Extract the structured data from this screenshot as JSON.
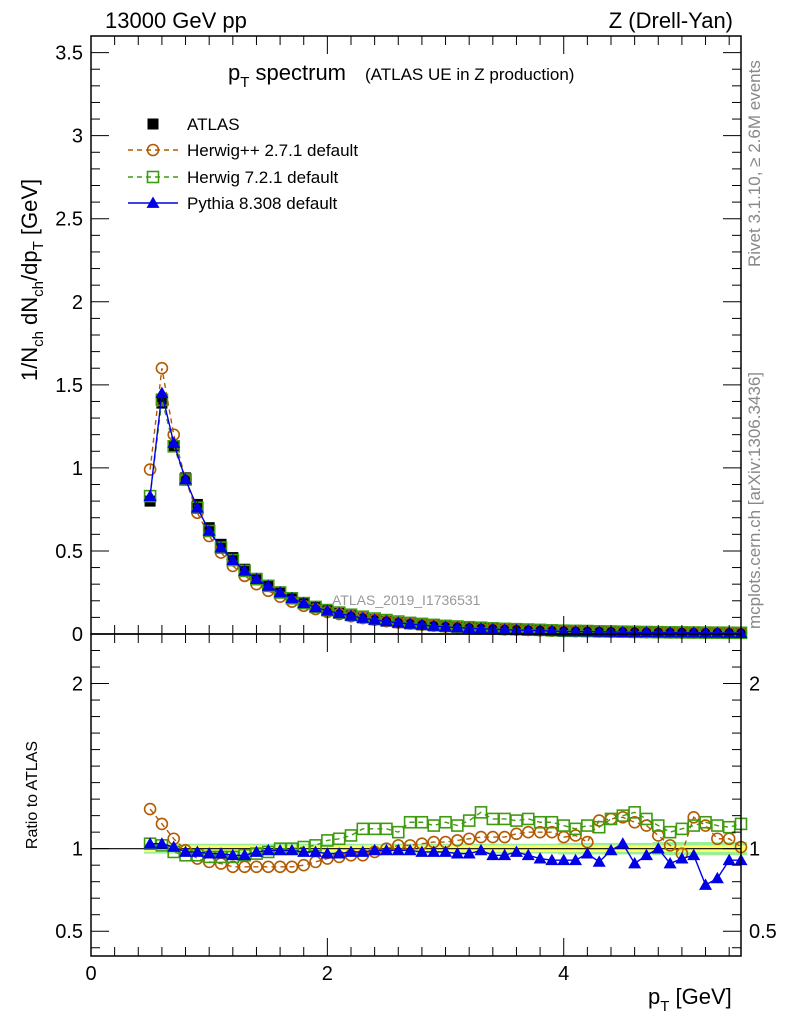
{
  "header": {
    "energy": "13000 GeV pp",
    "process": "Z (Drell-Yan)"
  },
  "side_labels": {
    "rivet": "Rivet 3.1.10, ≥ 2.6M events",
    "mcplots": "mcplots.cern.ch [arXiv:1306.3436]"
  },
  "colors": {
    "atlas": "#000000",
    "herwigpp": "#b35a00",
    "herwig7": "#3e9b0f",
    "pythia": "#0000e6",
    "band_inner": "#ffff66",
    "band_outer": "#99ee99"
  },
  "chart_data": [
    {
      "type": "line",
      "title_main": "p",
      "title_sub": "T",
      "title_rest": " spectrum",
      "subtitle": "(ATLAS UE in Z production)",
      "watermark": "ATLAS_2019_I1736531",
      "ylabel": "1/N_ch dN_ch/dp_T [GeV]",
      "xlim": [
        0,
        5.5
      ],
      "ylim": [
        0,
        3.6
      ],
      "yticks": [
        0,
        0.5,
        1,
        1.5,
        2,
        2.5,
        3,
        3.5
      ],
      "ytick_labels": [
        "0",
        "0.5",
        "1",
        "1.5",
        "2",
        "2.5",
        "3",
        "3.5"
      ],
      "legend_placement": "top-left",
      "x": [
        0.5,
        0.6,
        0.7,
        0.8,
        0.9,
        1.0,
        1.1,
        1.2,
        1.3,
        1.4,
        1.5,
        1.6,
        1.7,
        1.8,
        1.9,
        2.0,
        2.1,
        2.2,
        2.3,
        2.4,
        2.5,
        2.6,
        2.7,
        2.8,
        2.9,
        3.0,
        3.1,
        3.2,
        3.3,
        3.4,
        3.5,
        3.6,
        3.7,
        3.8,
        3.9,
        4.0,
        4.1,
        4.2,
        4.3,
        4.4,
        4.5,
        4.6,
        4.7,
        4.8,
        4.9,
        5.0,
        5.1,
        5.2,
        5.3,
        5.4,
        5.5
      ],
      "series": [
        {
          "name": "ATLAS",
          "key": "atlas",
          "marker": "square",
          "values": [
            0.8,
            1.39,
            1.13,
            0.94,
            0.78,
            0.64,
            0.54,
            0.46,
            0.39,
            0.335,
            0.29,
            0.25,
            0.215,
            0.185,
            0.16,
            0.14,
            0.125,
            0.11,
            0.097,
            0.086,
            0.077,
            0.068,
            0.061,
            0.055,
            0.049,
            0.044,
            0.04,
            0.036,
            0.033,
            0.03,
            0.027,
            0.025,
            0.023,
            0.021,
            0.019,
            0.017,
            0.016,
            0.015,
            0.014,
            0.013,
            0.012,
            0.011,
            0.01,
            0.0095,
            0.009,
            0.0085,
            0.008,
            0.0075,
            0.007,
            0.0065,
            0.006
          ]
        },
        {
          "name": "Herwig++ 2.7.1 default",
          "key": "herwigpp",
          "marker": "circle-open",
          "values": [
            0.99,
            1.6,
            1.2,
            0.93,
            0.73,
            0.59,
            0.49,
            0.41,
            0.35,
            0.3,
            0.26,
            0.225,
            0.195,
            0.17,
            0.15,
            0.133,
            0.12,
            0.107,
            0.096,
            0.086,
            0.077,
            0.069,
            0.062,
            0.056,
            0.05,
            0.045,
            0.041,
            0.037,
            0.034,
            0.031,
            0.028,
            0.026,
            0.024,
            0.022,
            0.02,
            0.018,
            0.017,
            0.016,
            0.015,
            0.014,
            0.013,
            0.012,
            0.011,
            0.01,
            0.0095,
            0.009,
            0.0085,
            0.008,
            0.0075,
            0.007,
            0.0065
          ]
        },
        {
          "name": "Herwig 7.2.1 default",
          "key": "herwig7",
          "marker": "square-open",
          "values": [
            0.83,
            1.41,
            1.13,
            0.93,
            0.76,
            0.62,
            0.52,
            0.445,
            0.38,
            0.33,
            0.29,
            0.25,
            0.215,
            0.186,
            0.163,
            0.144,
            0.129,
            0.116,
            0.104,
            0.093,
            0.084,
            0.075,
            0.067,
            0.061,
            0.055,
            0.049,
            0.045,
            0.041,
            0.038,
            0.034,
            0.031,
            0.029,
            0.027,
            0.025,
            0.022,
            0.02,
            0.019,
            0.018,
            0.016,
            0.015,
            0.014,
            0.013,
            0.012,
            0.011,
            0.01,
            0.0095,
            0.009,
            0.0085,
            0.008,
            0.0075,
            0.007
          ]
        },
        {
          "name": "Pythia 8.308 default",
          "key": "pythia",
          "marker": "triangle",
          "values": [
            0.83,
            1.45,
            1.15,
            0.93,
            0.76,
            0.62,
            0.52,
            0.445,
            0.38,
            0.33,
            0.29,
            0.25,
            0.215,
            0.185,
            0.16,
            0.14,
            0.124,
            0.109,
            0.096,
            0.085,
            0.076,
            0.068,
            0.061,
            0.054,
            0.048,
            0.043,
            0.039,
            0.035,
            0.032,
            0.029,
            0.026,
            0.024,
            0.022,
            0.02,
            0.018,
            0.016,
            0.015,
            0.014,
            0.013,
            0.012,
            0.011,
            0.01,
            0.0095,
            0.009,
            0.0085,
            0.008,
            0.0075,
            0.007,
            0.0065,
            0.006,
            0.0055
          ]
        }
      ]
    },
    {
      "type": "line",
      "ylabel": "Ratio to ATLAS",
      "xlabel_main": "p",
      "xlabel_sub": "T",
      "xlabel_rest": " [GeV]",
      "xlim": [
        0,
        5.5
      ],
      "ylim": [
        0.35,
        2.3
      ],
      "xticks": [
        0,
        2,
        4
      ],
      "xtick_labels": [
        "0",
        "2",
        "4"
      ],
      "yticks": [
        0.5,
        1,
        2
      ],
      "ytick_labels": [
        "0.5",
        "1",
        "2"
      ],
      "x": [
        0.5,
        0.6,
        0.7,
        0.8,
        0.9,
        1.0,
        1.1,
        1.2,
        1.3,
        1.4,
        1.5,
        1.6,
        1.7,
        1.8,
        1.9,
        2.0,
        2.1,
        2.2,
        2.3,
        2.4,
        2.5,
        2.6,
        2.7,
        2.8,
        2.9,
        3.0,
        3.1,
        3.2,
        3.3,
        3.4,
        3.5,
        3.6,
        3.7,
        3.8,
        3.9,
        4.0,
        4.1,
        4.2,
        4.3,
        4.4,
        4.5,
        4.6,
        4.7,
        4.8,
        4.9,
        5.0,
        5.1,
        5.2,
        5.3,
        5.4,
        5.5
      ],
      "band_inner_halfwidth": [
        0.02,
        0.02,
        0.02,
        0.02,
        0.02,
        0.02,
        0.02,
        0.02,
        0.02,
        0.02,
        0.02,
        0.02,
        0.02,
        0.02,
        0.02,
        0.02,
        0.02,
        0.02,
        0.02,
        0.02,
        0.02,
        0.02,
        0.02,
        0.02,
        0.02,
        0.02,
        0.02,
        0.02,
        0.02,
        0.02,
        0.02,
        0.02,
        0.02,
        0.02,
        0.02,
        0.02,
        0.02,
        0.02,
        0.02,
        0.02,
        0.02,
        0.02,
        0.02,
        0.02,
        0.02,
        0.02,
        0.02,
        0.02,
        0.02,
        0.02,
        0.02
      ],
      "band_outer_halfwidth": [
        0.03,
        0.03,
        0.03,
        0.03,
        0.03,
        0.03,
        0.03,
        0.03,
        0.03,
        0.03,
        0.03,
        0.03,
        0.03,
        0.03,
        0.03,
        0.03,
        0.03,
        0.03,
        0.03,
        0.03,
        0.03,
        0.03,
        0.03,
        0.03,
        0.03,
        0.03,
        0.03,
        0.03,
        0.03,
        0.03,
        0.03,
        0.03,
        0.03,
        0.03,
        0.03,
        0.035,
        0.035,
        0.035,
        0.035,
        0.035,
        0.035,
        0.035,
        0.035,
        0.04,
        0.04,
        0.04,
        0.04,
        0.04,
        0.04,
        0.04,
        0.04
      ],
      "series": [
        {
          "name": "Herwig++ 2.7.1 default",
          "key": "herwigpp",
          "marker": "circle-open",
          "values": [
            1.24,
            1.15,
            1.06,
            0.99,
            0.94,
            0.92,
            0.91,
            0.89,
            0.89,
            0.89,
            0.89,
            0.89,
            0.89,
            0.9,
            0.92,
            0.94,
            0.95,
            0.96,
            0.96,
            0.98,
            1.0,
            1.02,
            1.02,
            1.03,
            1.04,
            1.04,
            1.05,
            1.06,
            1.07,
            1.07,
            1.07,
            1.09,
            1.1,
            1.1,
            1.1,
            1.07,
            1.08,
            1.04,
            1.17,
            1.18,
            1.19,
            1.16,
            1.14,
            1.08,
            1.02,
            0.97,
            1.19,
            1.14,
            1.06,
            1.06,
            1.01
          ]
        },
        {
          "name": "Herwig 7.2.1 default",
          "key": "herwig7",
          "marker": "square-open",
          "values": [
            1.03,
            1.02,
            0.98,
            0.96,
            0.96,
            0.95,
            0.95,
            0.95,
            0.96,
            0.97,
            0.98,
            1.0,
            1.0,
            1.01,
            1.02,
            1.05,
            1.06,
            1.08,
            1.12,
            1.12,
            1.12,
            1.1,
            1.16,
            1.16,
            1.14,
            1.16,
            1.14,
            1.17,
            1.22,
            1.18,
            1.18,
            1.17,
            1.18,
            1.16,
            1.16,
            1.14,
            1.12,
            1.14,
            1.13,
            1.18,
            1.2,
            1.22,
            1.18,
            1.14,
            1.1,
            1.12,
            1.14,
            1.16,
            1.14,
            1.13,
            1.15
          ]
        },
        {
          "name": "Pythia 8.308 default",
          "key": "pythia",
          "marker": "triangle",
          "values": [
            1.03,
            1.03,
            1.01,
            0.98,
            0.98,
            0.97,
            0.97,
            0.96,
            0.96,
            0.98,
            0.99,
            0.99,
            0.99,
            0.98,
            0.98,
            0.97,
            0.97,
            0.98,
            0.98,
            0.99,
            0.99,
            0.99,
            0.99,
            0.98,
            0.98,
            0.98,
            0.97,
            0.97,
            0.99,
            0.96,
            0.96,
            0.98,
            0.96,
            0.94,
            0.93,
            0.93,
            0.93,
            0.97,
            0.92,
            0.99,
            1.03,
            0.91,
            0.96,
            1.0,
            0.91,
            0.94,
            0.96,
            0.78,
            0.82,
            0.93,
            0.93
          ]
        }
      ]
    }
  ]
}
